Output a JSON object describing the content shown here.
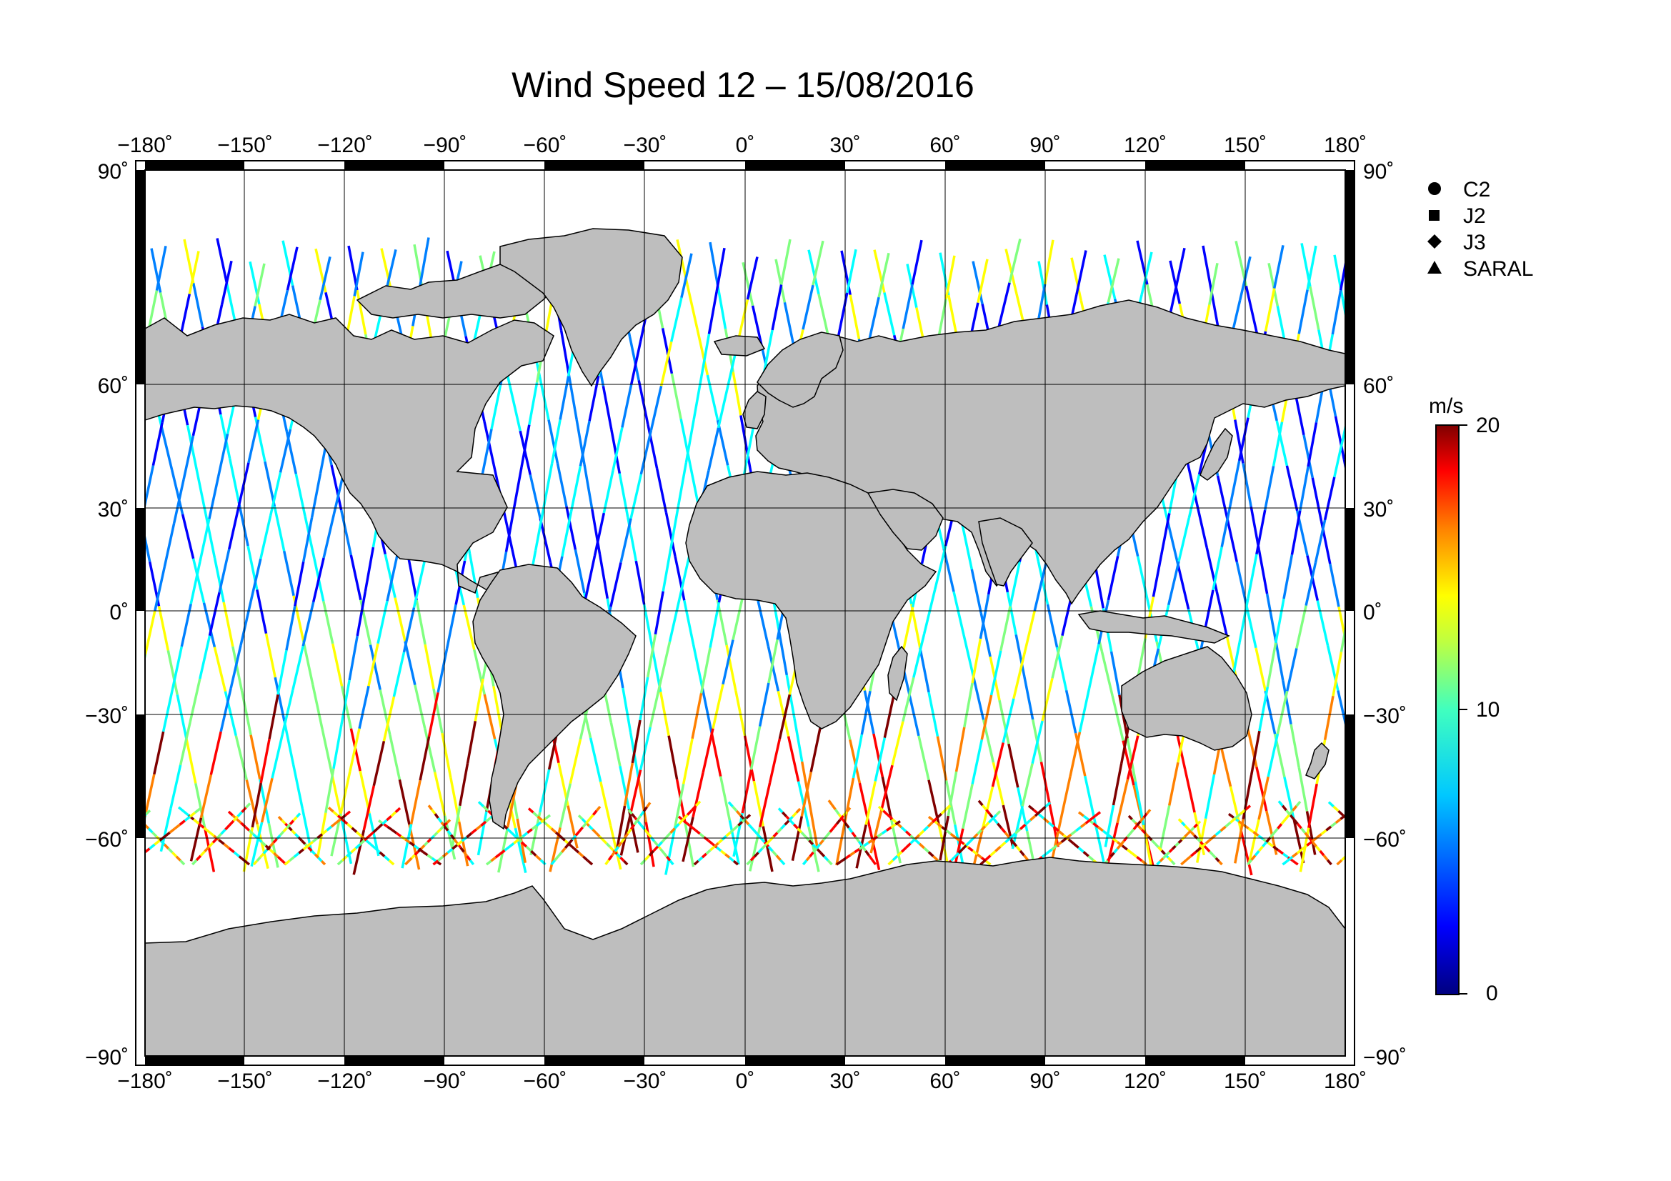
{
  "title": "Wind Speed 12 – 15/08/2016",
  "map": {
    "projection": "equirectangular",
    "lon_range": [
      -180,
      180
    ],
    "lat_range": [
      -90,
      90
    ],
    "lon_ticks": [
      "−180˚",
      "−150˚",
      "−120˚",
      "−90˚",
      "−60˚",
      "−30˚",
      "0˚",
      "30˚",
      "60˚",
      "90˚",
      "120˚",
      "150˚",
      "180˚"
    ],
    "lat_ticks": [
      "90˚",
      "60˚",
      "30˚",
      "0˚",
      "−30˚",
      "−60˚",
      "−90˚"
    ],
    "land_color": "#bebebe",
    "ocean_color": "#ffffff",
    "grid": true
  },
  "legend": {
    "items": [
      {
        "label": "C2",
        "marker": "circle"
      },
      {
        "label": "J2",
        "marker": "square"
      },
      {
        "label": "J3",
        "marker": "diamond"
      },
      {
        "label": "SARAL",
        "marker": "triangle"
      }
    ]
  },
  "colorbar": {
    "unit": "m/s",
    "min": 0,
    "max": 20,
    "labels": [
      "20",
      "10",
      "0"
    ],
    "colors": [
      "#00007f",
      "#0000ff",
      "#0080ff",
      "#00ffff",
      "#80ff80",
      "#ffff00",
      "#ff8000",
      "#ff0000",
      "#7f0000"
    ]
  }
}
